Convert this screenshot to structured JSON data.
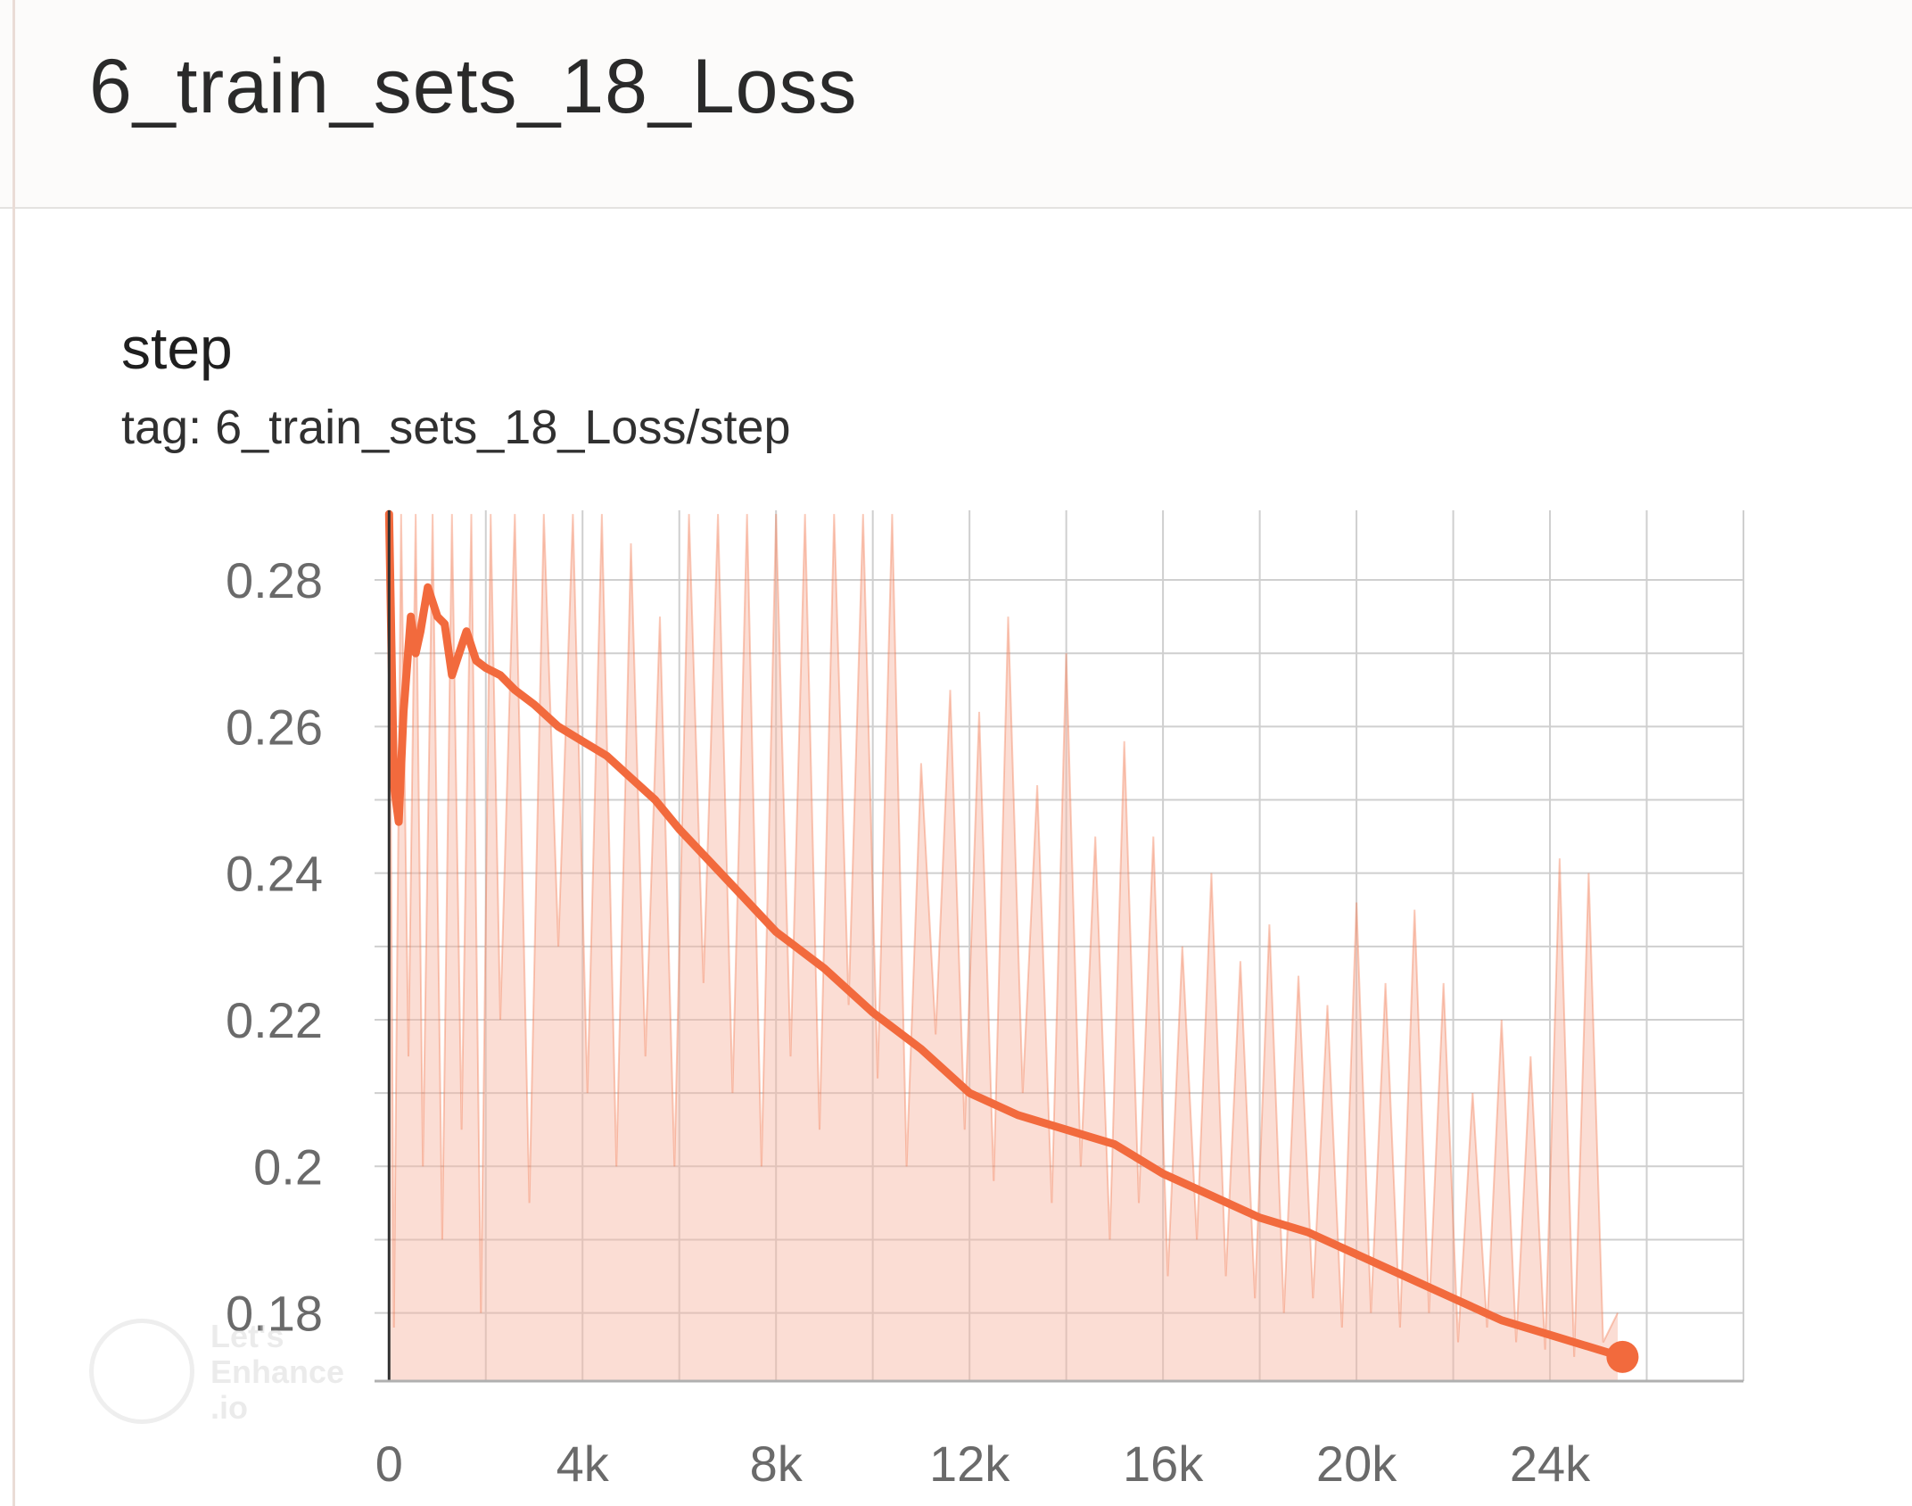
{
  "header": {
    "title": "6_train_sets_18_Loss"
  },
  "chart_header": {
    "name": "step",
    "tag": "tag: 6_train_sets_18_Loss/step"
  },
  "watermark": {
    "text": "Let's\nEnhance\n.io"
  },
  "colors": {
    "smoothed_line": "#f26a3d",
    "raw_line": "#f7b3a0",
    "grid": "#cfcfcf",
    "axis": "#303030"
  },
  "chart_data": {
    "type": "line",
    "title": "step",
    "xlabel": "",
    "ylabel": "",
    "xlim": [
      -300,
      28000
    ],
    "ylim": [
      0.1707,
      0.2895
    ],
    "x_ticks": [
      0,
      4000,
      8000,
      12000,
      16000,
      20000,
      24000
    ],
    "x_tick_labels": [
      "0",
      "4k",
      "8k",
      "12k",
      "16k",
      "20k",
      "24k"
    ],
    "y_ticks": [
      0.18,
      0.2,
      0.22,
      0.24,
      0.26,
      0.28
    ],
    "y_tick_labels": [
      "0.18",
      "0.2",
      "0.22",
      "0.24",
      "0.26",
      "0.28"
    ],
    "grid": true,
    "legend": "none",
    "series": [
      {
        "smoothing": "smoothed",
        "x": [
          0,
          100,
          200,
          300,
          450,
          550,
          650,
          800,
          1000,
          1150,
          1300,
          1450,
          1600,
          1800,
          2000,
          2300,
          2600,
          3000,
          3500,
          4000,
          4500,
          5000,
          5500,
          6000,
          7000,
          8000,
          9000,
          10000,
          11000,
          12000,
          13000,
          14000,
          15000,
          16000,
          17000,
          18000,
          19000,
          20000,
          21000,
          22000,
          23000,
          24000,
          25000,
          25500
        ],
        "y": [
          0.289,
          0.252,
          0.247,
          0.262,
          0.275,
          0.27,
          0.273,
          0.279,
          0.275,
          0.274,
          0.267,
          0.27,
          0.273,
          0.269,
          0.268,
          0.267,
          0.265,
          0.263,
          0.26,
          0.258,
          0.256,
          0.253,
          0.25,
          0.246,
          0.239,
          0.232,
          0.227,
          0.221,
          0.216,
          0.21,
          0.207,
          0.205,
          0.203,
          0.199,
          0.196,
          0.193,
          0.191,
          0.188,
          0.185,
          0.182,
          0.179,
          0.177,
          0.175,
          0.174
        ]
      },
      {
        "smoothing": "raw",
        "x": [
          0,
          100,
          250,
          400,
          550,
          700,
          900,
          1100,
          1300,
          1500,
          1700,
          1900,
          2100,
          2300,
          2600,
          2900,
          3200,
          3500,
          3800,
          4100,
          4400,
          4700,
          5000,
          5300,
          5600,
          5900,
          6200,
          6500,
          6800,
          7100,
          7400,
          7700,
          8000,
          8300,
          8600,
          8900,
          9200,
          9500,
          9800,
          10100,
          10400,
          10700,
          11000,
          11300,
          11600,
          11900,
          12200,
          12500,
          12800,
          13100,
          13400,
          13700,
          14000,
          14300,
          14600,
          14900,
          15200,
          15500,
          15800,
          16100,
          16400,
          16700,
          17000,
          17300,
          17600,
          17900,
          18200,
          18500,
          18800,
          19100,
          19400,
          19700,
          20000,
          20300,
          20600,
          20900,
          21200,
          21500,
          21800,
          22100,
          22400,
          22700,
          23000,
          23300,
          23600,
          23900,
          24200,
          24500,
          24800,
          25100,
          25400
        ],
        "y": [
          0.289,
          0.178,
          0.289,
          0.215,
          0.289,
          0.2,
          0.289,
          0.19,
          0.289,
          0.205,
          0.289,
          0.18,
          0.289,
          0.22,
          0.289,
          0.195,
          0.289,
          0.23,
          0.289,
          0.21,
          0.289,
          0.2,
          0.285,
          0.215,
          0.275,
          0.2,
          0.289,
          0.225,
          0.289,
          0.21,
          0.289,
          0.2,
          0.289,
          0.215,
          0.289,
          0.205,
          0.289,
          0.222,
          0.289,
          0.212,
          0.289,
          0.2,
          0.255,
          0.218,
          0.265,
          0.205,
          0.262,
          0.198,
          0.275,
          0.21,
          0.252,
          0.195,
          0.27,
          0.2,
          0.245,
          0.19,
          0.258,
          0.195,
          0.245,
          0.185,
          0.23,
          0.19,
          0.24,
          0.185,
          0.228,
          0.182,
          0.233,
          0.18,
          0.226,
          0.182,
          0.222,
          0.178,
          0.236,
          0.18,
          0.225,
          0.178,
          0.235,
          0.18,
          0.225,
          0.176,
          0.21,
          0.178,
          0.22,
          0.176,
          0.215,
          0.175,
          0.242,
          0.174,
          0.24,
          0.176,
          0.18
        ]
      }
    ]
  }
}
